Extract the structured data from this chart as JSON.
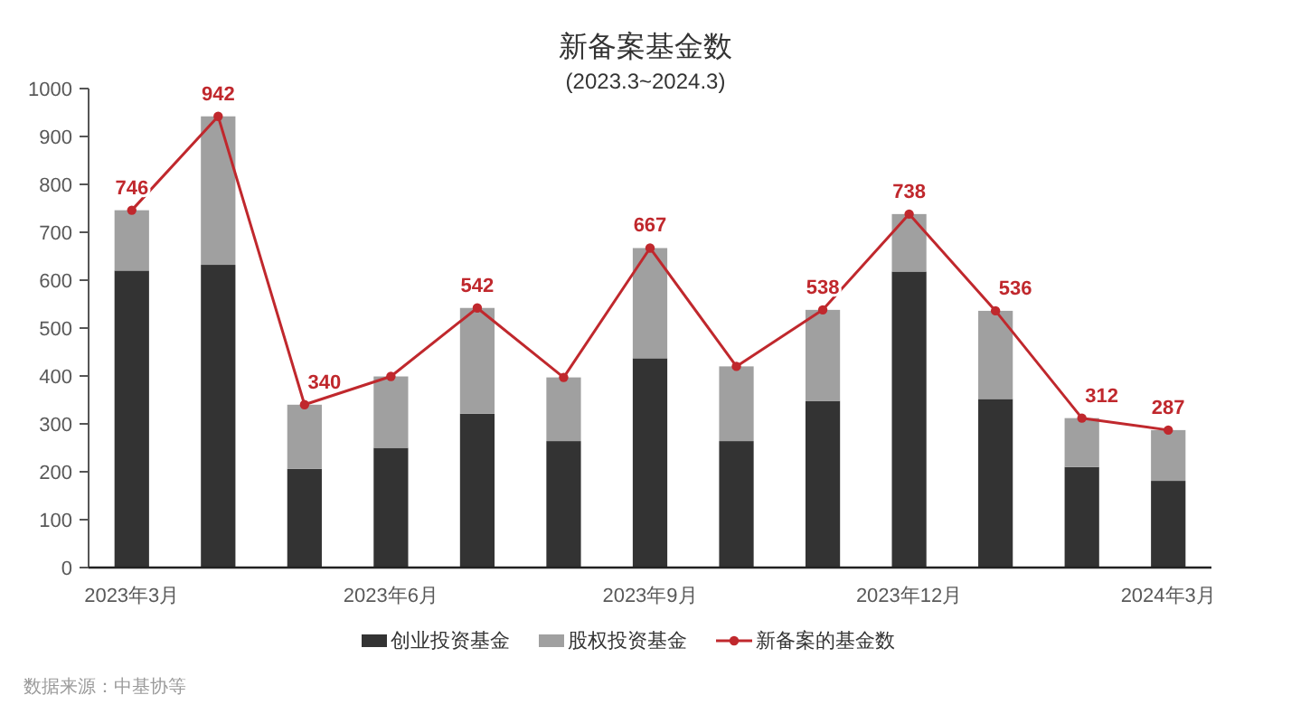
{
  "chart_data": {
    "type": "bar",
    "title": "新备案基金数",
    "subtitle": "(2023.3~2024.3)",
    "categories": [
      "2023年3月",
      null,
      null,
      "2023年6月",
      null,
      null,
      "2023年9月",
      null,
      null,
      "2023年12月",
      null,
      null,
      "2024年3月"
    ],
    "stacked": true,
    "series": [
      {
        "name": "创业投资基金",
        "color": "#333333",
        "values": [
          620,
          632,
          206,
          250,
          321,
          264,
          437,
          264,
          348,
          618,
          352,
          210,
          181
        ]
      },
      {
        "name": "股权投资基金",
        "color": "#a0a0a0",
        "values": [
          126,
          310,
          134,
          149,
          221,
          133,
          230,
          156,
          190,
          120,
          184,
          102,
          106
        ]
      },
      {
        "name": "新备案的基金数",
        "type": "line",
        "color": "#c0282d",
        "values": [
          746,
          942,
          340,
          399,
          542,
          397,
          667,
          420,
          538,
          738,
          536,
          312,
          287
        ],
        "value_labels": [
          "746",
          "942",
          "340",
          null,
          "542",
          null,
          "667",
          null,
          "538",
          "738",
          "536",
          "312",
          "287"
        ]
      }
    ],
    "ylim": [
      0,
      1000
    ],
    "yticks": [
      0,
      100,
      200,
      300,
      400,
      500,
      600,
      700,
      800,
      900,
      1000
    ],
    "legend": "bottom",
    "marker": "circle",
    "line_style": "solid",
    "annotations": [
      "数据来源：中基协等"
    ]
  }
}
